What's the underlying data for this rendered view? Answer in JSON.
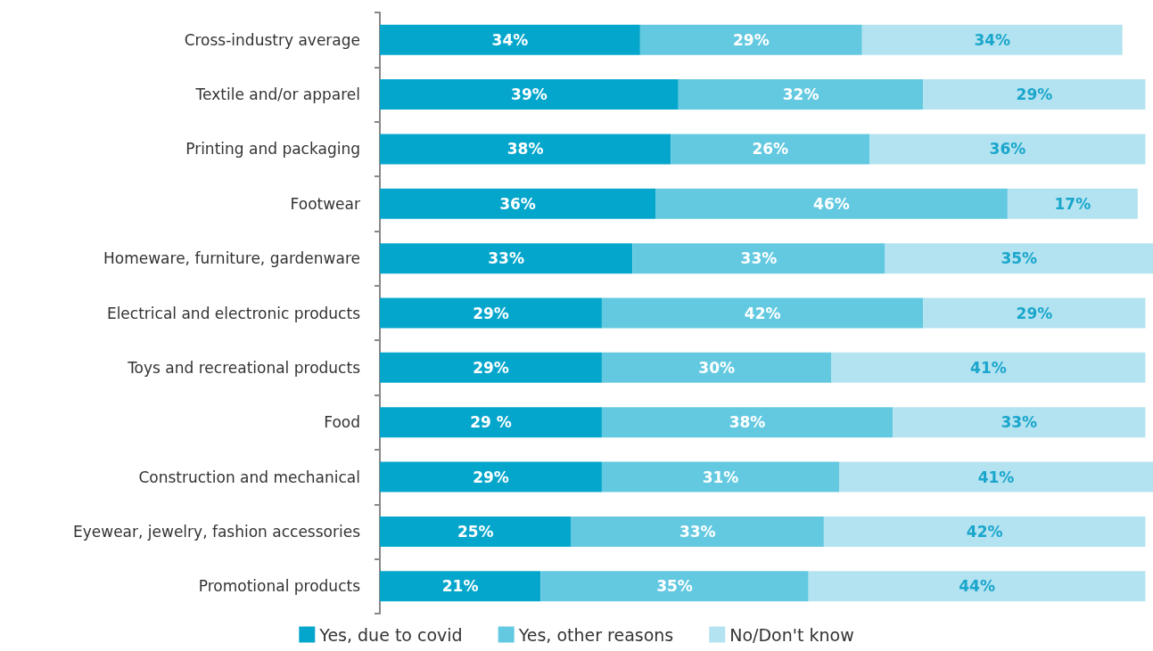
{
  "chart_data": {
    "type": "bar",
    "orientation": "horizontal",
    "stacked": true,
    "legend": "bottom",
    "xlim": [
      0,
      101
    ],
    "categories": [
      "Cross-industry average",
      "Textile and/or apparel",
      "Printing and packaging",
      "Footwear",
      "Homeware, furniture, gardenware",
      "Electrical and electronic products",
      "Toys and recreational products",
      "Food",
      "Construction and mechanical",
      "Eyewear, jewelry, fashion accessories",
      "Promotional products"
    ],
    "series": [
      {
        "name": "Yes, due to covid",
        "color": "#05a6cc",
        "values": [
          34,
          39,
          38,
          36,
          33,
          29,
          29,
          29,
          29,
          25,
          21
        ],
        "value_labels": [
          "34%",
          "39%",
          "38%",
          "36%",
          "33%",
          "29%",
          "29%",
          "29 %",
          "29%",
          "25%",
          "21%"
        ]
      },
      {
        "name": "Yes, other reasons",
        "color": "#63c9e1",
        "values": [
          29,
          32,
          26,
          46,
          33,
          42,
          30,
          38,
          31,
          33,
          35
        ],
        "value_labels": [
          "29%",
          "32%",
          "26%",
          "46%",
          "33%",
          "42%",
          "30%",
          "38%",
          "31%",
          "33%",
          "35%"
        ]
      },
      {
        "name": "No/Don't know",
        "color": "#b3e3f0",
        "values": [
          34,
          29,
          36,
          17,
          35,
          29,
          41,
          33,
          41,
          42,
          44
        ],
        "value_labels": [
          "34%",
          "29%",
          "36%",
          "17%",
          "35%",
          "29%",
          "41%",
          "33%",
          "41%",
          "42%",
          "44%"
        ]
      }
    ]
  }
}
